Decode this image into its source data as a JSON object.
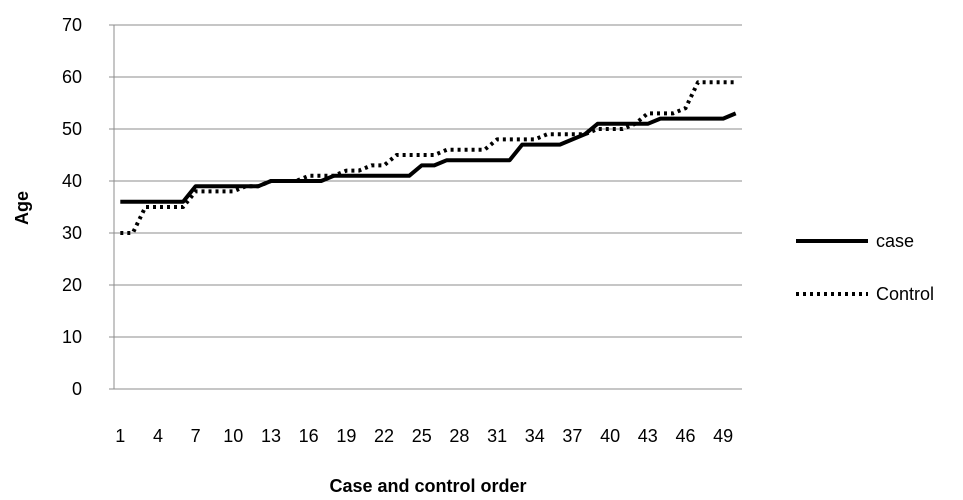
{
  "chart_data": {
    "type": "line",
    "title": "",
    "xlabel": "Case and control order",
    "ylabel": "Age",
    "ylim": [
      0,
      70
    ],
    "yticks": [
      0,
      10,
      20,
      30,
      40,
      50,
      60,
      70
    ],
    "xlim": [
      1,
      50
    ],
    "xtick_labels": [
      "1",
      "4",
      "7",
      "10",
      "13",
      "16",
      "19",
      "22",
      "25",
      "28",
      "31",
      "34",
      "37",
      "40",
      "43",
      "46",
      "49"
    ],
    "grid": true,
    "legend_position": "right",
    "x": [
      1,
      2,
      3,
      4,
      5,
      6,
      7,
      8,
      9,
      10,
      11,
      12,
      13,
      14,
      15,
      16,
      17,
      18,
      19,
      20,
      21,
      22,
      23,
      24,
      25,
      26,
      27,
      28,
      29,
      30,
      31,
      32,
      33,
      34,
      35,
      36,
      37,
      38,
      39,
      40,
      41,
      42,
      43,
      44,
      45,
      46,
      47,
      48,
      49,
      50
    ],
    "series": [
      {
        "name": "case",
        "style": "solid",
        "color": "#000000",
        "values": [
          36,
          36,
          36,
          36,
          36,
          36,
          39,
          39,
          39,
          39,
          39,
          39,
          40,
          40,
          40,
          40,
          40,
          41,
          41,
          41,
          41,
          41,
          41,
          41,
          43,
          43,
          44,
          44,
          44,
          44,
          44,
          44,
          47,
          47,
          47,
          47,
          48,
          49,
          51,
          51,
          51,
          51,
          51,
          52,
          52,
          52,
          52,
          52,
          52,
          53
        ]
      },
      {
        "name": "Control",
        "style": "dotted",
        "color": "#000000",
        "values": [
          30,
          30,
          35,
          35,
          35,
          35,
          38,
          38,
          38,
          38,
          39,
          39,
          40,
          40,
          40,
          41,
          41,
          41,
          42,
          42,
          43,
          43,
          45,
          45,
          45,
          45,
          46,
          46,
          46,
          46,
          48,
          48,
          48,
          48,
          49,
          49,
          49,
          49,
          50,
          50,
          50,
          51,
          53,
          53,
          53,
          54,
          59,
          59,
          59,
          59
        ]
      }
    ]
  }
}
